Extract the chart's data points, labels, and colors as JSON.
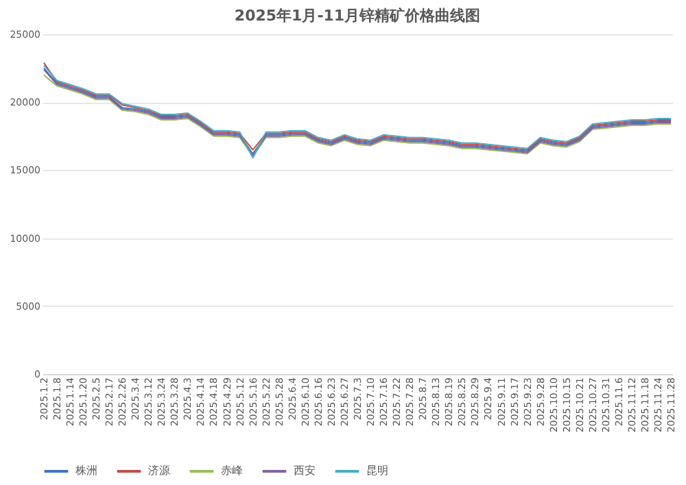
{
  "chart_data": {
    "type": "line",
    "title": "2025年1月-11月锌精矿价格曲线图",
    "categories": [
      "2025.1.2",
      "2025.1.8",
      "2025.1.14",
      "2025.1.20",
      "2025.2.5",
      "2025.2.17",
      "2025.2.26",
      "2025.3.4",
      "2025.3.12",
      "2025.3.24",
      "2025.3.28",
      "2025.4.3",
      "2025.4.14",
      "2025.4.18",
      "2025.4.29",
      "2025.5.12",
      "2025.5.16",
      "2025.5.22",
      "2025.5.28",
      "2025.6.4",
      "2025.6.10",
      "2025.6.16",
      "2025.6.23",
      "2025.6.27",
      "2025.7.3",
      "2025.7.10",
      "2025.7.16",
      "2025.7.22",
      "2025.7.28",
      "2025.8.7",
      "2025.8.13",
      "2025.8.19",
      "2025.8.25",
      "2025.8.29",
      "2025.9.4",
      "2025.9.11",
      "2025.9.17",
      "2025.9.23",
      "2025.9.28",
      "2025.10.10",
      "2025.10.15",
      "2025.10.21",
      "2025.10.27",
      "2025.10.31",
      "2025.11.6",
      "2025.11.12",
      "2025.11.18",
      "2025.11.24",
      "2025.11.28"
    ],
    "series": [
      {
        "name": "株洲",
        "color": "#4472c4",
        "values": [
          22500,
          21400,
          21100,
          20800,
          20400,
          20400,
          19600,
          19500,
          19300,
          18900,
          18900,
          19000,
          18400,
          17700,
          17700,
          17600,
          16200,
          17600,
          17600,
          17700,
          17700,
          17200,
          17000,
          17400,
          17100,
          17000,
          17400,
          17300,
          17200,
          17200,
          17100,
          17000,
          16800,
          16800,
          16700,
          16600,
          16500,
          16400,
          17200,
          17000,
          16900,
          17300,
          18200,
          18300,
          18400,
          18500,
          18500,
          18600,
          18600
        ]
      },
      {
        "name": "济源",
        "color": "#c0504d",
        "values": [
          22900,
          21500,
          21200,
          20900,
          20500,
          20500,
          19800,
          19600,
          19400,
          19000,
          19000,
          19100,
          18500,
          17800,
          17800,
          17700,
          16500,
          17700,
          17700,
          17800,
          17800,
          17300,
          17100,
          17500,
          17200,
          17100,
          17500,
          17400,
          17300,
          17300,
          17200,
          17100,
          16900,
          16900,
          16800,
          16700,
          16600,
          16500,
          17300,
          17100,
          17000,
          17400,
          18300,
          18400,
          18500,
          18600,
          18600,
          18700,
          18700
        ]
      },
      {
        "name": "赤峰",
        "color": "#9bbb59",
        "values": [
          22000,
          21200,
          20900,
          20600,
          20200,
          20200,
          19400,
          19300,
          19100,
          18700,
          18700,
          18800,
          18200,
          17500,
          17500,
          17400,
          16000,
          17400,
          17400,
          17500,
          17500,
          17000,
          16800,
          17200,
          16900,
          16800,
          17200,
          17100,
          17000,
          17000,
          16900,
          16800,
          16600,
          16600,
          16500,
          16400,
          16300,
          16200,
          17000,
          16800,
          16700,
          17100,
          18000,
          18100,
          18200,
          18300,
          18300,
          18400,
          18400
        ]
      },
      {
        "name": "西安",
        "color": "#8064a2",
        "values": [
          22400,
          21300,
          21000,
          20700,
          20300,
          20300,
          19500,
          19400,
          19200,
          18800,
          18800,
          18900,
          18300,
          17600,
          17600,
          17500,
          16100,
          17500,
          17500,
          17600,
          17600,
          17100,
          16900,
          17300,
          17000,
          16900,
          17300,
          17200,
          17100,
          17100,
          17000,
          16900,
          16700,
          16700,
          16600,
          16500,
          16400,
          16300,
          17100,
          16900,
          16800,
          17200,
          18100,
          18200,
          18300,
          18400,
          18400,
          18500,
          18500
        ]
      },
      {
        "name": "昆明",
        "color": "#4bacc6",
        "values": [
          22700,
          21600,
          21300,
          21000,
          20600,
          20600,
          19900,
          19700,
          19500,
          19100,
          19100,
          19200,
          18600,
          17900,
          17900,
          17800,
          15900,
          17800,
          17800,
          17900,
          17900,
          17400,
          17200,
          17600,
          17300,
          17200,
          17600,
          17500,
          17400,
          17400,
          17300,
          17200,
          17000,
          17000,
          16900,
          16800,
          16700,
          16600,
          17400,
          17200,
          17100,
          17500,
          18400,
          18500,
          18600,
          18700,
          18700,
          18800,
          18800
        ]
      }
    ],
    "ylim": [
      0,
      25000
    ],
    "yticks": [
      0,
      5000,
      10000,
      15000,
      20000,
      25000
    ],
    "grid": "y",
    "legend": "bottom"
  }
}
